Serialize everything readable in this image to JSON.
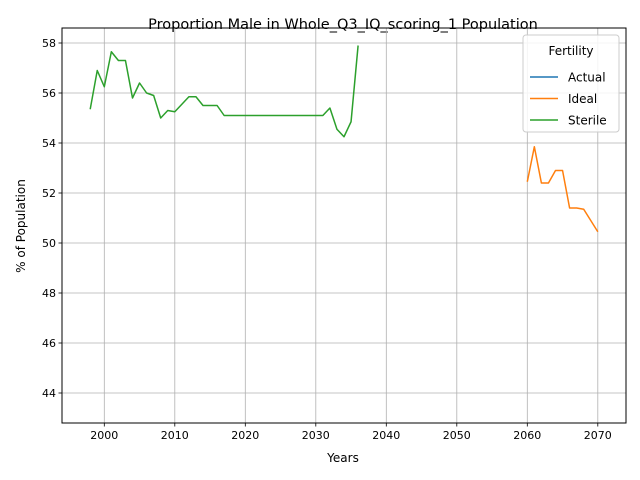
{
  "chart_data": {
    "type": "line",
    "title": "Proportion Male in Whole_Q3_IQ_scoring_1 Population",
    "xlabel": "Years",
    "ylabel": "% of Population",
    "xlim": [
      1994,
      2074
    ],
    "ylim": [
      42.8,
      58.6
    ],
    "xticks": [
      2000,
      2010,
      2020,
      2030,
      2040,
      2050,
      2060,
      2070
    ],
    "yticks": [
      44,
      46,
      48,
      50,
      52,
      54,
      56,
      58
    ],
    "grid": true,
    "legend": {
      "title": "Fertility",
      "position": "top-right"
    },
    "series": [
      {
        "name": "Actual",
        "color": "#1f77b4",
        "points": []
      },
      {
        "name": "Ideal",
        "color": "#ff7f0e",
        "points": [
          [
            2060,
            52.45
          ],
          [
            2061,
            53.85
          ],
          [
            2062,
            52.4
          ],
          [
            2063,
            52.4
          ],
          [
            2064,
            52.9
          ],
          [
            2065,
            52.9
          ],
          [
            2066,
            51.4
          ],
          [
            2067,
            51.4
          ],
          [
            2068,
            51.35
          ],
          [
            2069,
            50.9
          ],
          [
            2070,
            50.45
          ]
        ]
      },
      {
        "name": "Sterile",
        "color": "#2ca02c",
        "points": [
          [
            1998,
            55.35
          ],
          [
            1999,
            56.9
          ],
          [
            2000,
            56.25
          ],
          [
            2001,
            57.65
          ],
          [
            2002,
            57.3
          ],
          [
            2003,
            57.3
          ],
          [
            2004,
            55.8
          ],
          [
            2005,
            56.4
          ],
          [
            2006,
            56.0
          ],
          [
            2007,
            55.9
          ],
          [
            2008,
            55.0
          ],
          [
            2009,
            55.3
          ],
          [
            2010,
            55.25
          ],
          [
            2011,
            55.55
          ],
          [
            2012,
            55.85
          ],
          [
            2013,
            55.85
          ],
          [
            2014,
            55.5
          ],
          [
            2015,
            55.5
          ],
          [
            2016,
            55.5
          ],
          [
            2017,
            55.1
          ],
          [
            2018,
            55.1
          ],
          [
            2019,
            55.1
          ],
          [
            2020,
            55.1
          ],
          [
            2021,
            55.1
          ],
          [
            2022,
            55.1
          ],
          [
            2023,
            55.1
          ],
          [
            2024,
            55.1
          ],
          [
            2025,
            55.1
          ],
          [
            2026,
            55.1
          ],
          [
            2027,
            55.1
          ],
          [
            2028,
            55.1
          ],
          [
            2029,
            55.1
          ],
          [
            2030,
            55.1
          ],
          [
            2031,
            55.1
          ],
          [
            2032,
            55.4
          ],
          [
            2033,
            54.55
          ],
          [
            2034,
            54.25
          ],
          [
            2035,
            54.85
          ],
          [
            2036,
            57.9
          ]
        ]
      }
    ]
  }
}
